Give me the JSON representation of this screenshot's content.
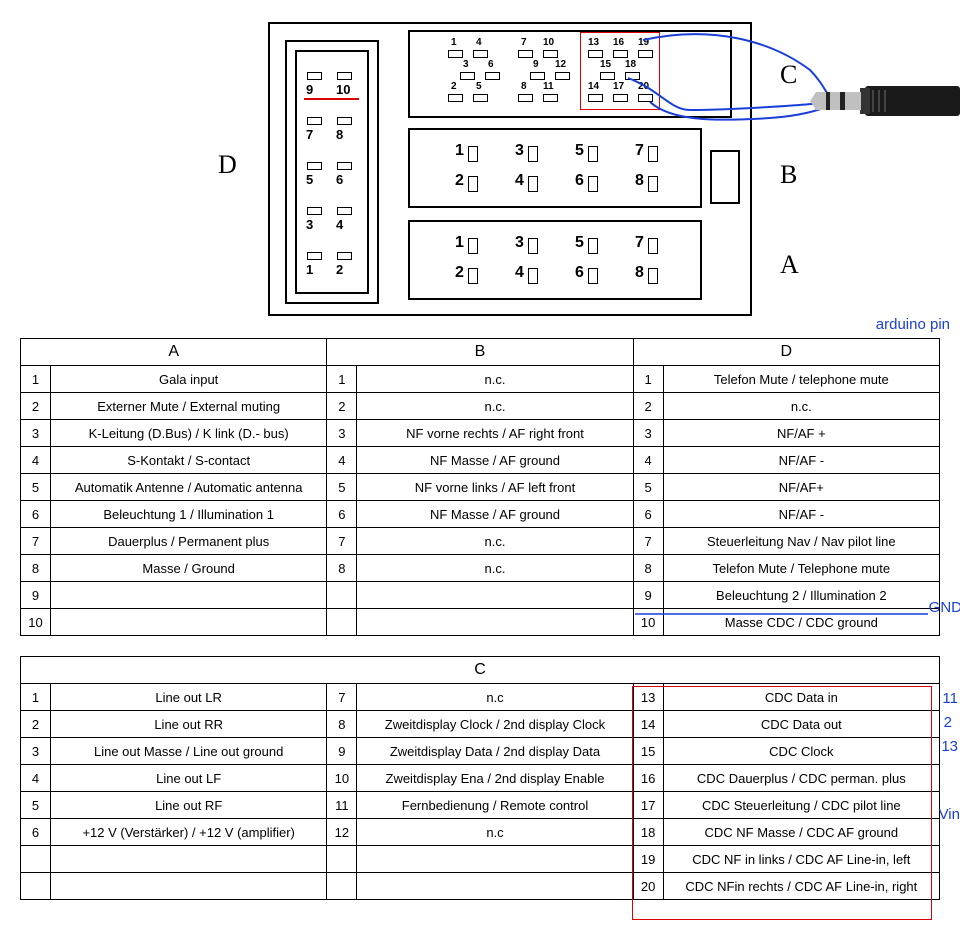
{
  "diagram": {
    "labels": {
      "A": "A",
      "B": "B",
      "C": "C",
      "D": "D"
    },
    "connector_D_pins": [
      "1",
      "2",
      "3",
      "4",
      "5",
      "6",
      "7",
      "8",
      "9",
      "10"
    ],
    "connector_C_top": [
      "1",
      "4",
      "7",
      "10",
      "13",
      "16",
      "19"
    ],
    "connector_C_mid": [
      "3",
      "6",
      "9",
      "12",
      "15",
      "18"
    ],
    "connector_C_bot": [
      "2",
      "5",
      "8",
      "11",
      "14",
      "17",
      "20"
    ],
    "connector_BA": [
      "1",
      "2",
      "3",
      "4",
      "5",
      "6",
      "7",
      "8"
    ],
    "arduino_header": "arduino pin"
  },
  "tableABD": {
    "headers": [
      "A",
      "B",
      "D"
    ],
    "rows": [
      [
        "1",
        "Gala input",
        "1",
        "n.c.",
        "1",
        "Telefon Mute / telephone mute"
      ],
      [
        "2",
        "Externer Mute / External muting",
        "2",
        "n.c.",
        "2",
        "n.c."
      ],
      [
        "3",
        "K-Leitung (D.Bus) / K link (D.- bus)",
        "3",
        "NF vorne rechts / AF right front",
        "3",
        "NF/AF +"
      ],
      [
        "4",
        "S-Kontakt / S-contact",
        "4",
        "NF Masse / AF ground",
        "4",
        "NF/AF -"
      ],
      [
        "5",
        "Automatik Antenne / Automatic antenna",
        "5",
        "NF vorne links / AF left front",
        "5",
        "NF/AF+"
      ],
      [
        "6",
        "Beleuchtung 1 / Illumination 1",
        "6",
        "NF Masse / AF ground",
        "6",
        "NF/AF -"
      ],
      [
        "7",
        "Dauerplus / Permanent plus",
        "7",
        "n.c.",
        "7",
        "Steuerleitung Nav / Nav pilot line"
      ],
      [
        "8",
        "Masse / Ground",
        "8",
        "n.c.",
        "8",
        "Telefon Mute / Telephone mute"
      ],
      [
        "9",
        "",
        "",
        "",
        "9",
        "Beleuchtung 2 / Illumination 2"
      ],
      [
        "10",
        "",
        "",
        "",
        "10",
        "Masse CDC / CDC ground"
      ]
    ],
    "side_label": "GND"
  },
  "tableC": {
    "header": "C",
    "rows": [
      [
        "1",
        "Line out LR",
        "7",
        "n.c",
        "13",
        "CDC Data in"
      ],
      [
        "2",
        "Line out RR",
        "8",
        "Zweitdisplay Clock / 2nd display Clock",
        "14",
        "CDC Data out"
      ],
      [
        "3",
        "Line out Masse / Line out ground",
        "9",
        "Zweitdisplay Data / 2nd display Data",
        "15",
        "CDC Clock"
      ],
      [
        "4",
        "Line out LF",
        "10",
        "Zweitdisplay Ena / 2nd display Enable",
        "16",
        "CDC Dauerplus / CDC perman. plus"
      ],
      [
        "5",
        "Line out RF",
        "11",
        "Fernbedienung / Remote control",
        "17",
        "CDC Steuerleitung / CDC pilot line"
      ],
      [
        "6",
        "+12 V (Verstärker) / +12 V (amplifier)",
        "12",
        "n.c",
        "18",
        "CDC NF Masse / CDC AF ground"
      ],
      [
        "",
        "",
        "",
        "",
        "19",
        "CDC NF in links / CDC AF Line-in, left"
      ],
      [
        "",
        "",
        "",
        "",
        "20",
        "CDC NFin rechts / CDC AF Line-in, right"
      ]
    ],
    "side_labels": [
      "11",
      "2",
      "13",
      "Vin"
    ]
  },
  "colors": {
    "wire": "#1a3fd9",
    "highlight": "#d00000"
  }
}
